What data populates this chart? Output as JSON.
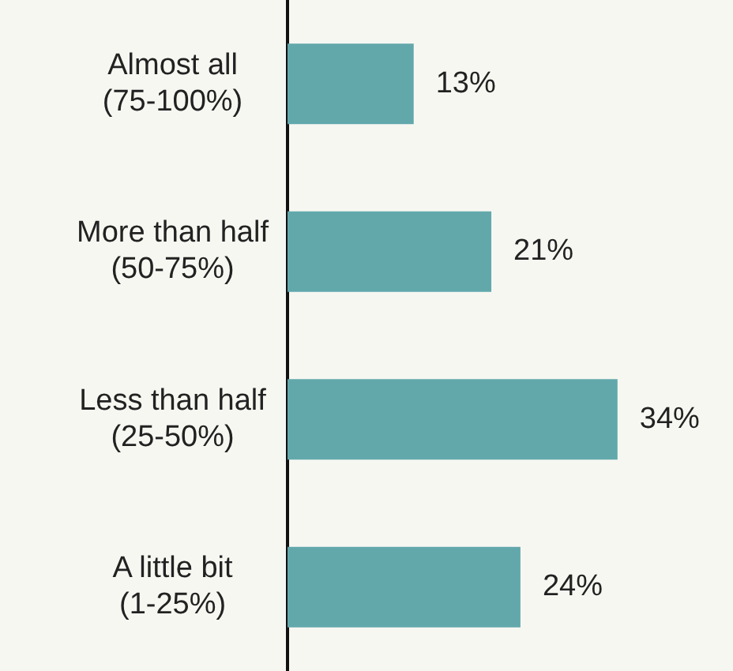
{
  "chart_data": {
    "type": "bar",
    "orientation": "horizontal",
    "categories": [
      "Almost all\n(75-100%)",
      "More than half\n(50-75%)",
      "Less than half\n(25-50%)",
      "A little bit\n(1-25%)"
    ],
    "values": [
      13,
      21,
      34,
      24
    ],
    "value_labels": [
      "13%",
      "21%",
      "34%",
      "24%"
    ],
    "color": "#62a8ab"
  }
}
